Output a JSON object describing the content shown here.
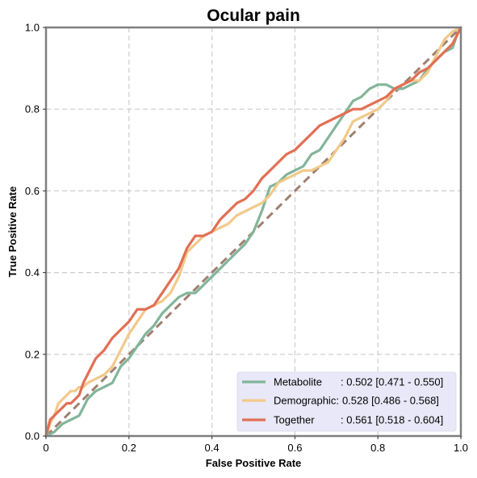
{
  "chart_data": {
    "type": "line",
    "title": "Ocular pain",
    "xlabel": "False Positive Rate",
    "ylabel": "True Positive Rate",
    "xlim": [
      0,
      1
    ],
    "ylim": [
      0,
      1
    ],
    "x_ticks": [
      "0",
      "0.2",
      "0.4",
      "0.6",
      "0.8",
      "1.0"
    ],
    "y_ticks": [
      "0.0",
      "0.2",
      "0.4",
      "0.6",
      "0.8",
      "1.0"
    ],
    "grid": true,
    "legend_position": "lower-right",
    "legend_background": "#e8e8f8",
    "diagonal": {
      "x": [
        0,
        1
      ],
      "y": [
        0,
        1
      ],
      "color": "#a08070",
      "style": "dashed"
    },
    "series": [
      {
        "name": "Metabolite",
        "auc_text": ": 0.502 [0.471 - 0.550]",
        "color": "#82b59a",
        "x": [
          0,
          0.01,
          0.02,
          0.03,
          0.04,
          0.06,
          0.08,
          0.09,
          0.1,
          0.11,
          0.12,
          0.14,
          0.16,
          0.17,
          0.18,
          0.2,
          0.22,
          0.24,
          0.26,
          0.28,
          0.3,
          0.32,
          0.34,
          0.36,
          0.38,
          0.4,
          0.42,
          0.44,
          0.46,
          0.48,
          0.5,
          0.52,
          0.54,
          0.56,
          0.58,
          0.6,
          0.62,
          0.64,
          0.66,
          0.68,
          0.7,
          0.72,
          0.74,
          0.76,
          0.78,
          0.8,
          0.82,
          0.84,
          0.86,
          0.88,
          0.9,
          0.92,
          0.94,
          0.96,
          0.98,
          0.99,
          1.0
        ],
        "y": [
          0,
          0.005,
          0.01,
          0.02,
          0.03,
          0.04,
          0.05,
          0.07,
          0.09,
          0.1,
          0.11,
          0.12,
          0.13,
          0.15,
          0.17,
          0.19,
          0.22,
          0.25,
          0.27,
          0.3,
          0.32,
          0.34,
          0.35,
          0.35,
          0.37,
          0.39,
          0.41,
          0.43,
          0.45,
          0.47,
          0.5,
          0.55,
          0.61,
          0.62,
          0.64,
          0.65,
          0.66,
          0.69,
          0.7,
          0.73,
          0.76,
          0.79,
          0.82,
          0.83,
          0.85,
          0.86,
          0.86,
          0.85,
          0.85,
          0.86,
          0.87,
          0.9,
          0.92,
          0.94,
          0.95,
          0.98,
          1.0
        ]
      },
      {
        "name": "Demographic:",
        "auc_text": "0.528 [0.486 - 0.568]",
        "color": "#f1c98a",
        "x": [
          0,
          0.01,
          0.02,
          0.03,
          0.04,
          0.05,
          0.06,
          0.07,
          0.08,
          0.09,
          0.1,
          0.12,
          0.14,
          0.16,
          0.18,
          0.2,
          0.22,
          0.24,
          0.26,
          0.28,
          0.3,
          0.32,
          0.34,
          0.36,
          0.38,
          0.4,
          0.42,
          0.44,
          0.46,
          0.48,
          0.5,
          0.52,
          0.54,
          0.56,
          0.58,
          0.6,
          0.62,
          0.64,
          0.66,
          0.68,
          0.7,
          0.72,
          0.74,
          0.76,
          0.78,
          0.8,
          0.82,
          0.84,
          0.86,
          0.88,
          0.9,
          0.92,
          0.94,
          0.96,
          0.98,
          1.0
        ],
        "y": [
          0,
          0.03,
          0.05,
          0.08,
          0.09,
          0.1,
          0.11,
          0.11,
          0.12,
          0.12,
          0.13,
          0.14,
          0.15,
          0.17,
          0.21,
          0.25,
          0.28,
          0.31,
          0.32,
          0.33,
          0.35,
          0.39,
          0.45,
          0.47,
          0.49,
          0.5,
          0.51,
          0.52,
          0.54,
          0.55,
          0.56,
          0.57,
          0.59,
          0.62,
          0.63,
          0.64,
          0.65,
          0.65,
          0.66,
          0.67,
          0.7,
          0.73,
          0.77,
          0.78,
          0.79,
          0.8,
          0.82,
          0.85,
          0.86,
          0.87,
          0.87,
          0.89,
          0.93,
          0.97,
          0.99,
          1.0
        ]
      },
      {
        "name": "Together",
        "auc_text": ": 0.561 [0.518 - 0.604]",
        "color": "#e26f55",
        "x": [
          0,
          0.01,
          0.02,
          0.03,
          0.04,
          0.05,
          0.06,
          0.07,
          0.08,
          0.09,
          0.1,
          0.11,
          0.12,
          0.14,
          0.16,
          0.18,
          0.2,
          0.22,
          0.24,
          0.26,
          0.28,
          0.3,
          0.32,
          0.34,
          0.36,
          0.38,
          0.4,
          0.42,
          0.44,
          0.46,
          0.48,
          0.5,
          0.52,
          0.54,
          0.56,
          0.58,
          0.6,
          0.62,
          0.64,
          0.66,
          0.68,
          0.7,
          0.72,
          0.74,
          0.76,
          0.78,
          0.8,
          0.82,
          0.84,
          0.86,
          0.88,
          0.9,
          0.92,
          0.94,
          0.96,
          0.98,
          1.0
        ],
        "y": [
          0,
          0.04,
          0.05,
          0.06,
          0.07,
          0.08,
          0.08,
          0.09,
          0.1,
          0.13,
          0.15,
          0.17,
          0.19,
          0.21,
          0.24,
          0.26,
          0.28,
          0.31,
          0.31,
          0.32,
          0.35,
          0.38,
          0.41,
          0.46,
          0.49,
          0.49,
          0.5,
          0.53,
          0.55,
          0.57,
          0.58,
          0.6,
          0.63,
          0.65,
          0.67,
          0.69,
          0.7,
          0.72,
          0.74,
          0.76,
          0.77,
          0.78,
          0.79,
          0.8,
          0.8,
          0.81,
          0.82,
          0.83,
          0.85,
          0.86,
          0.87,
          0.89,
          0.9,
          0.92,
          0.94,
          0.96,
          1.0
        ]
      }
    ]
  }
}
